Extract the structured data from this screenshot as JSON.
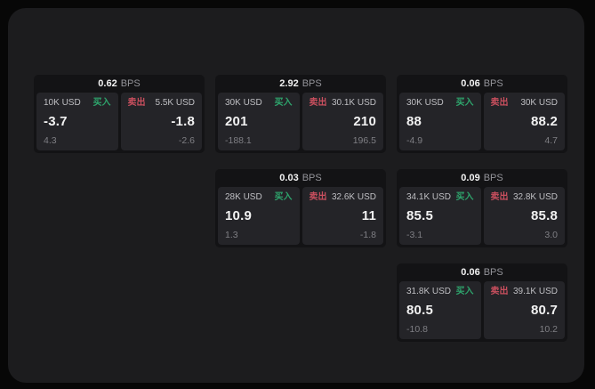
{
  "labels": {
    "bps_suffix": "BPS",
    "buy": "买入",
    "sell": "卖出"
  },
  "colors": {
    "outer_bg": "#070707",
    "panel_bg": "#1c1c1e",
    "card_bg": "#131315",
    "tile_bg": "#242428",
    "buy_green": "#2ea46c",
    "sell_red": "#c94f5e",
    "text_primary": "#f2f2f2",
    "text_label": "#bfbfc3",
    "text_sub": "#7f7f84"
  },
  "cards": [
    {
      "bps": "0.62",
      "col": 1,
      "row": 1,
      "buy": {
        "notional": "10K USD",
        "value": "-3.7",
        "sub": "4.3"
      },
      "sell": {
        "notional": "5.5K USD",
        "value": "-1.8",
        "sub": "-2.6"
      }
    },
    {
      "bps": "2.92",
      "col": 2,
      "row": 1,
      "buy": {
        "notional": "30K USD",
        "value": "201",
        "sub": "-188.1"
      },
      "sell": {
        "notional": "30.1K USD",
        "value": "210",
        "sub": "196.5"
      }
    },
    {
      "bps": "0.06",
      "col": 3,
      "row": 1,
      "buy": {
        "notional": "30K USD",
        "value": "88",
        "sub": "-4.9"
      },
      "sell": {
        "notional": "30K USD",
        "value": "88.2",
        "sub": "4.7"
      }
    },
    {
      "bps": "0.03",
      "col": 2,
      "row": 2,
      "buy": {
        "notional": "28K USD",
        "value": "10.9",
        "sub": "1.3"
      },
      "sell": {
        "notional": "32.6K USD",
        "value": "11",
        "sub": "-1.8"
      }
    },
    {
      "bps": "0.09",
      "col": 3,
      "row": 2,
      "buy": {
        "notional": "34.1K USD",
        "value": "85.5",
        "sub": "-3.1"
      },
      "sell": {
        "notional": "32.8K USD",
        "value": "85.8",
        "sub": "3.0"
      }
    },
    {
      "bps": "0.06",
      "col": 3,
      "row": 3,
      "buy": {
        "notional": "31.8K USD",
        "value": "80.5",
        "sub": "-10.8"
      },
      "sell": {
        "notional": "39.1K USD",
        "value": "80.7",
        "sub": "10.2"
      }
    }
  ]
}
